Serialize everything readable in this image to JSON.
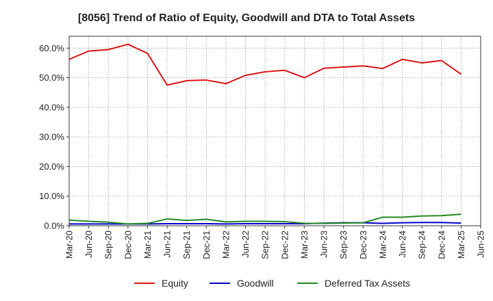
{
  "chart_data": {
    "type": "line",
    "title": "[8056]  Trend of Ratio of Equity, Goodwill and DTA to Total Assets",
    "xlabel": "",
    "ylabel": "",
    "x": [
      "Mar-20",
      "Jun-20",
      "Sep-20",
      "Dec-20",
      "Mar-21",
      "Jun-21",
      "Sep-21",
      "Dec-21",
      "Mar-22",
      "Jun-22",
      "Sep-22",
      "Dec-22",
      "Mar-23",
      "Jun-23",
      "Sep-23",
      "Dec-23",
      "Mar-24",
      "Jun-24",
      "Sep-24",
      "Dec-24",
      "Mar-25",
      "Jun-25"
    ],
    "ylim": [
      0,
      64
    ],
    "yticks": [
      0,
      10,
      20,
      30,
      40,
      50,
      60
    ],
    "ytick_labels": [
      "0.0%",
      "10.0%",
      "20.0%",
      "30.0%",
      "40.0%",
      "50.0%",
      "60.0%"
    ],
    "grid": true,
    "legend_position": "bottom",
    "series": [
      {
        "name": "Equity",
        "color": "#dd1111",
        "values": [
          56.2,
          59.0,
          59.5,
          61.3,
          58.2,
          47.5,
          49.0,
          49.2,
          48.0,
          50.8,
          52.0,
          52.5,
          50.0,
          53.2,
          53.6,
          54.0,
          53.1,
          56.2,
          55.0,
          55.8,
          51.2,
          null
        ]
      },
      {
        "name": "Goodwill",
        "color": "#0000cc",
        "values": [
          0.6,
          0.6,
          0.6,
          0.6,
          0.6,
          0.7,
          0.7,
          0.7,
          0.6,
          0.7,
          0.7,
          0.7,
          0.7,
          0.9,
          1.0,
          1.0,
          0.8,
          1.0,
          1.1,
          1.1,
          0.9,
          null
        ]
      },
      {
        "name": "Deferred Tax Assets",
        "color": "#228822",
        "values": [
          1.9,
          1.5,
          1.2,
          0.6,
          0.8,
          2.3,
          1.8,
          2.2,
          1.3,
          1.5,
          1.5,
          1.4,
          0.8,
          0.8,
          0.9,
          1.0,
          2.9,
          2.9,
          3.3,
          3.4,
          3.9,
          null
        ]
      }
    ]
  }
}
